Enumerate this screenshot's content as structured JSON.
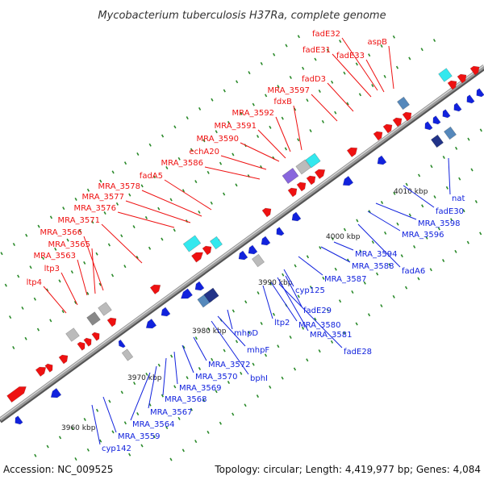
{
  "title": "Mycobacterium tuberculosis H37Ra, complete genome",
  "footer": {
    "accession": "Accession: NC_009525",
    "summary": "Topology: circular; Length: 4,419,977 bp; Genes: 4,084"
  },
  "colors": {
    "forward": "#ee1111",
    "reverse": "#1122dd",
    "backbone": "#9a9a9a",
    "tick_dot": "#2a8a2a",
    "feature_cyan": "#33e8ee",
    "feature_purple": "#8866dd",
    "feature_grey": "#bbbbbb",
    "feature_steel": "#5588bb",
    "feature_navy": "#223388"
  },
  "ticks": [
    "3960 kbp",
    "3970 kbp",
    "3980 kbp",
    "3990 kbp",
    "4000 kbp",
    "4010 kbp"
  ],
  "labels_forward": [
    "ltp4",
    "ltp3",
    "MRA_3563",
    "MRA_3565",
    "MRA_3566",
    "MRA_3571",
    "MRA_3576",
    "MRA_3577",
    "MRA_3578",
    "fadA5",
    "MRA_3586",
    "echA20",
    "MRA_3590",
    "MRA_3591",
    "MRA_3592",
    "fdxB",
    "MRA_3597",
    "fadD3",
    "fadE31",
    "fadE32",
    "fadE33",
    "aspB"
  ],
  "labels_reverse": [
    "cyp142",
    "MRA_3559",
    "MRA_3564",
    "MRA_3567",
    "MRA_3568",
    "MRA_3569",
    "MRA_3570",
    "MRA_3572",
    "bphI",
    "mhpF",
    "mhpD",
    "ltp2",
    "MRA_3580",
    "MRA_3581",
    "fadE28",
    "fadE29",
    "cyp125",
    "MRA_3587",
    "MRA_3588",
    "fadA6",
    "MRA_3594",
    "MRA_3596",
    "MRA_3598",
    "fadE30",
    "nat"
  ]
}
